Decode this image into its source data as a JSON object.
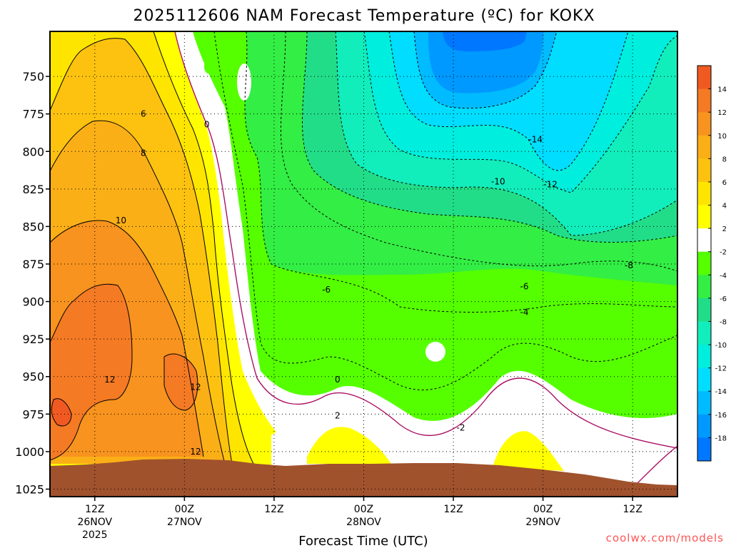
{
  "chart_data": {
    "type": "heatmap",
    "title": "2025112606 NAM Forecast Temperature (ºC) for KOKX",
    "xlabel": "Forecast Time (UTC)",
    "ylabel": "",
    "y_axis": {
      "reversed": true,
      "ylim": [
        1030,
        720
      ],
      "ticks": [
        "750",
        "775",
        "800",
        "825",
        "850",
        "875",
        "900",
        "925",
        "950",
        "975",
        "1000",
        "1025"
      ],
      "tick_values": [
        750,
        775,
        800,
        825,
        850,
        875,
        900,
        925,
        950,
        975,
        1000,
        1025
      ]
    },
    "x_axis": {
      "ticks": [
        {
          "hour": "12Z",
          "date": "26NOV",
          "year": "2025"
        },
        {
          "hour": "00Z",
          "date": "27NOV",
          "year": ""
        },
        {
          "hour": "12Z",
          "date": "",
          "year": ""
        },
        {
          "hour": "00Z",
          "date": "28NOV",
          "year": ""
        },
        {
          "hour": "12Z",
          "date": "",
          "year": ""
        },
        {
          "hour": "00Z",
          "date": "29NOV",
          "year": ""
        },
        {
          "hour": "12Z",
          "date": "",
          "year": ""
        }
      ],
      "tick_forecast_hours": [
        6,
        18,
        30,
        42,
        54,
        66,
        78
      ],
      "xlim": [
        0,
        84
      ]
    },
    "grid": true,
    "colorbar": {
      "placement": "right",
      "labels": [
        "14",
        "12",
        "10",
        "8",
        "6",
        "4",
        "2",
        "-2",
        "-4",
        "-6",
        "-8",
        "-10",
        "-12",
        "-14",
        "-16",
        "-18"
      ],
      "colors": [
        "#f05a22",
        "#f47a24",
        "#f7931e",
        "#fbaf17",
        "#fdc210",
        "#fde500",
        "#ffff00",
        "#ffffff",
        "#55ff00",
        "#33ee44",
        "#22dd88",
        "#11eebb",
        "#00eedd",
        "#00ddff",
        "#00bbff",
        "#0099ff",
        "#0077ff"
      ]
    },
    "contour_labels": [
      {
        "text": "6",
        "x": 12.5,
        "p": 775
      },
      {
        "text": "8",
        "x": 12.5,
        "p": 801
      },
      {
        "text": "10",
        "x": 9.5,
        "p": 846
      },
      {
        "text": "12",
        "x": 8,
        "p": 952
      },
      {
        "text": "12",
        "x": 19.5,
        "p": 957
      },
      {
        "text": "12",
        "x": 19.5,
        "p": 1000
      },
      {
        "text": "0",
        "x": 21,
        "p": 782
      },
      {
        "text": "0",
        "x": 38.5,
        "p": 952
      },
      {
        "text": "2",
        "x": 38.5,
        "p": 976
      },
      {
        "text": "-2",
        "x": 55,
        "p": 984
      },
      {
        "text": "-6",
        "x": 37,
        "p": 892
      },
      {
        "text": "-6",
        "x": 63.5,
        "p": 890
      },
      {
        "text": "-4",
        "x": 63.5,
        "p": 907
      },
      {
        "text": "-8",
        "x": 77.5,
        "p": 876
      },
      {
        "text": "-10",
        "x": 60,
        "p": 820
      },
      {
        "text": "-12",
        "x": 67,
        "p": 822
      },
      {
        "text": "-14",
        "x": 65,
        "p": 792
      }
    ],
    "regions": [
      {
        "temp_c": "12 to 14",
        "approx_hours": [
          0,
          18
        ],
        "approx_p": [
          900,
          1005
        ]
      },
      {
        "temp_c": "-2 to 2",
        "approx_hours": [
          18,
          22
        ],
        "approx_p": [
          720,
          1000
        ]
      },
      {
        "temp_c": "-16 to -14",
        "approx_hours": [
          48,
          60
        ],
        "approx_p": [
          720,
          770
        ]
      },
      {
        "temp_c": "2 to 4",
        "approx_hours": [
          36,
          42
        ],
        "approx_p": [
          975,
          1005
        ]
      }
    ],
    "credit": "coolwx.com/models"
  }
}
